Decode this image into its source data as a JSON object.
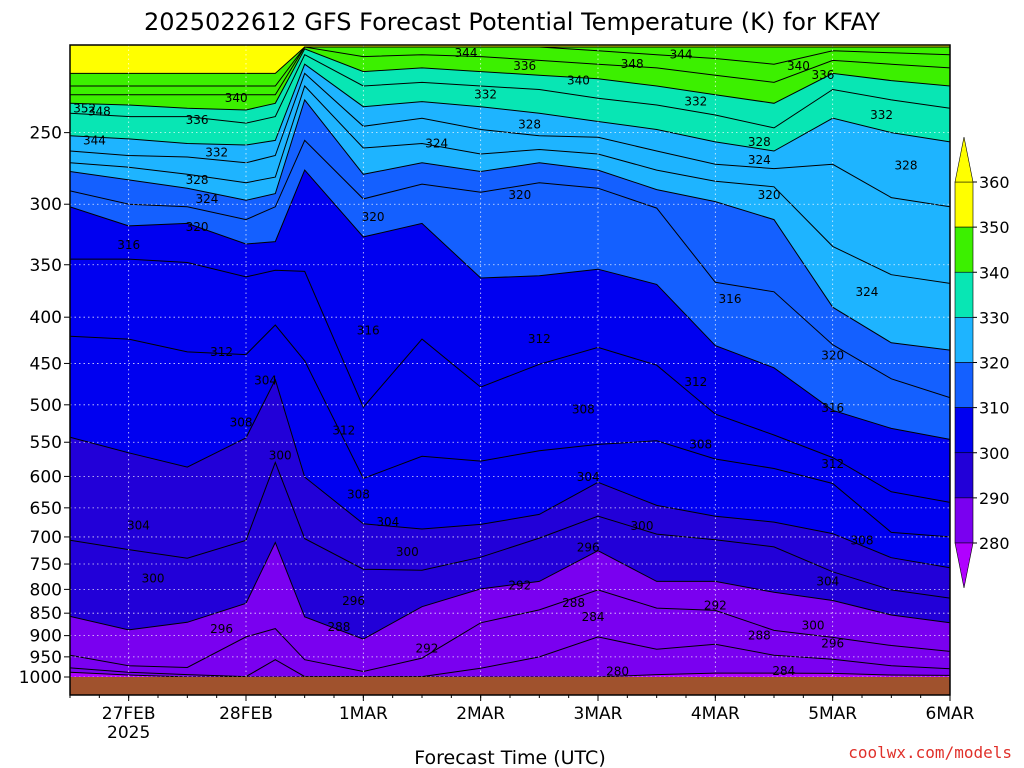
{
  "chart_data": {
    "type": "heatmap",
    "title": "2025022612 GFS Forecast Potential Temperature (K) for KFAY",
    "xlabel": "Forecast Time (UTC)",
    "ylabel": "",
    "credit": "coolwx.com/models",
    "y_axis": {
      "scale": "log-pressure",
      "unit": "hPa",
      "range": [
        1000,
        200
      ],
      "ticks": [
        "250",
        "300",
        "350",
        "400",
        "450",
        "500",
        "550",
        "600",
        "650",
        "700",
        "750",
        "800",
        "850",
        "900",
        "950",
        "1000"
      ]
    },
    "x_axis": {
      "range": [
        "2025-02-26T12:00Z",
        "2025-03-06T00:00Z"
      ],
      "ticks": [
        {
          "label": "27FEB",
          "sublabel": "2025",
          "time": "2025-02-27T00:00Z"
        },
        {
          "label": "28FEB",
          "sublabel": "",
          "time": "2025-02-28T00:00Z"
        },
        {
          "label": "1MAR",
          "sublabel": "",
          "time": "2025-03-01T00:00Z"
        },
        {
          "label": "2MAR",
          "sublabel": "",
          "time": "2025-03-02T00:00Z"
        },
        {
          "label": "3MAR",
          "sublabel": "",
          "time": "2025-03-03T00:00Z"
        },
        {
          "label": "4MAR",
          "sublabel": "",
          "time": "2025-03-04T00:00Z"
        },
        {
          "label": "5MAR",
          "sublabel": "",
          "time": "2025-03-05T00:00Z"
        },
        {
          "label": "6MAR",
          "sublabel": "",
          "time": "2025-03-06T00:00Z"
        }
      ]
    },
    "grid": true,
    "colorbar": {
      "levels": [
        280,
        290,
        300,
        310,
        320,
        330,
        340,
        350,
        360
      ],
      "labels": [
        "280",
        "290",
        "300",
        "310",
        "320",
        "330",
        "340",
        "350",
        "360"
      ],
      "colors": [
        "#b000ff",
        "#7a00f0",
        "#2200d8",
        "#0000f0",
        "#1460ff",
        "#1eb4ff",
        "#08e6b4",
        "#3cf000",
        "#ffff00",
        "#ffc800",
        "#ff9600"
      ]
    },
    "isentrope_levels": [
      280,
      284,
      288,
      292,
      296,
      300,
      304,
      308,
      312,
      316,
      320,
      324,
      328,
      332,
      336,
      340,
      344,
      348,
      352
    ],
    "isentrope_profiles": [
      {
        "time": "2025-02-26T12:00Z",
        "pressure_hPa": [
          988,
          977,
          946,
          857,
          706,
          543,
          420,
          345,
          302,
          290,
          276,
          270,
          262,
          252,
          238,
          232,
          227,
          222,
          215
        ]
      },
      {
        "time": "2025-02-27T00:00Z",
        "pressure_hPa": [
          995,
          988,
          972,
          887,
          723,
          565,
          423,
          345,
          317,
          300,
          282,
          273,
          265,
          254,
          240,
          233,
          227,
          222,
          215
        ]
      },
      {
        "time": "2025-02-27T12:00Z",
        "pressure_hPa": [
          1000,
          994,
          976,
          870,
          739,
          586,
          437,
          348,
          315,
          302,
          288,
          278,
          266,
          257,
          240,
          235,
          227,
          222,
          215
        ]
      },
      {
        "time": "2025-02-28T00:00Z",
        "pressure_hPa": [
          1000,
          999,
          903,
          829,
          706,
          544,
          440,
          361,
          332,
          312,
          297,
          284,
          270,
          258,
          244,
          236,
          227,
          222,
          215
        ]
      },
      {
        "time": "2025-02-28T06:00Z",
        "pressure_hPa": [
          1000,
          957,
          884,
          710,
          579,
          469,
          408,
          355,
          330,
          302,
          292,
          280,
          265,
          255,
          240,
          232,
          227,
          222,
          215
        ]
      },
      {
        "time": "2025-02-28T12:00Z",
        "pressure_hPa": [
          1000,
          999,
          957,
          858,
          703,
          601,
          447,
          356,
          275,
          255,
          230,
          222,
          215,
          210,
          205,
          202,
          201,
          201,
          201
        ]
      },
      {
        "time": "2025-03-01T00:00Z",
        "pressure_hPa": [
          1000,
          999,
          986,
          908,
          760,
          677,
          603,
          503,
          326,
          296,
          278,
          260,
          246,
          234,
          222,
          214,
          206,
          201,
          201
        ]
      },
      {
        "time": "2025-03-01T12:00Z",
        "pressure_hPa": [
          1000,
          999,
          953,
          836,
          762,
          686,
          570,
          423,
          315,
          285,
          270,
          257,
          241,
          231,
          220,
          212,
          205,
          201,
          201
        ]
      },
      {
        "time": "2025-03-02T00:00Z",
        "pressure_hPa": [
          1000,
          978,
          871,
          799,
          737,
          678,
          577,
          478,
          362,
          291,
          276,
          264,
          248,
          234,
          222,
          214,
          206,
          201,
          201
        ]
      },
      {
        "time": "2025-03-02T12:00Z",
        "pressure_hPa": [
          1000,
          950,
          843,
          784,
          702,
          661,
          562,
          451,
          360,
          284,
          270,
          261,
          252,
          238,
          224,
          216,
          208,
          201,
          201
        ]
      },
      {
        "time": "2025-03-03T00:00Z",
        "pressure_hPa": [
          1000,
          903,
          801,
          725,
          664,
          609,
          553,
          432,
          354,
          288,
          275,
          264,
          253,
          243,
          229,
          218,
          210,
          203,
          201
        ]
      },
      {
        "time": "2025-03-03T12:00Z",
        "pressure_hPa": [
          994,
          932,
          839,
          784,
          695,
          646,
          548,
          452,
          368,
          303,
          289,
          275,
          262,
          248,
          233,
          222,
          212,
          205,
          201
        ]
      },
      {
        "time": "2025-03-04T00:00Z",
        "pressure_hPa": [
          990,
          920,
          844,
          784,
          705,
          664,
          574,
          512,
          430,
          366,
          298,
          283,
          271,
          256,
          239,
          227,
          216,
          207,
          201
        ]
      },
      {
        "time": "2025-03-04T12:00Z",
        "pressure_hPa": [
          990,
          946,
          888,
          806,
          718,
          674,
          588,
          540,
          455,
          375,
          312,
          287,
          274,
          262,
          247,
          232,
          220,
          210,
          201
        ]
      },
      {
        "time": "2025-03-05T00:00Z",
        "pressure_hPa": [
          991,
          956,
          904,
          823,
          765,
          694,
          611,
          572,
          507,
          429,
          390,
          334,
          271,
          241,
          224,
          215,
          208,
          203,
          201
        ]
      },
      {
        "time": "2025-03-05T12:00Z",
        "pressure_hPa": [
          995,
          972,
          923,
          854,
          801,
          738,
          692,
          624,
          531,
          468,
          427,
          359,
          295,
          250,
          230,
          219,
          210,
          204,
          201
        ]
      },
      {
        "time": "2025-03-06T00:00Z",
        "pressure_hPa": [
          996,
          979,
          937,
          871,
          818,
          757,
          700,
          641,
          546,
          491,
          435,
          367,
          302,
          256,
          235,
          222,
          212,
          205,
          201
        ]
      }
    ],
    "contour_labels": [
      {
        "text": "352",
        "time": "2025-02-26T15:00Z",
        "pressure_hPa": 235
      },
      {
        "text": "348",
        "time": "2025-02-26T18:00Z",
        "pressure_hPa": 237
      },
      {
        "text": "344",
        "time": "2025-02-26T17:00Z",
        "pressure_hPa": 255
      },
      {
        "text": "340",
        "time": "2025-02-27T22:00Z",
        "pressure_hPa": 229
      },
      {
        "text": "336",
        "time": "2025-02-27T14:00Z",
        "pressure_hPa": 242
      },
      {
        "text": "332",
        "time": "2025-02-27T18:00Z",
        "pressure_hPa": 263
      },
      {
        "text": "328",
        "time": "2025-02-27T14:00Z",
        "pressure_hPa": 282
      },
      {
        "text": "324",
        "time": "2025-02-27T16:00Z",
        "pressure_hPa": 296
      },
      {
        "text": "320",
        "time": "2025-02-27T14:00Z",
        "pressure_hPa": 318
      },
      {
        "text": "316",
        "time": "2025-02-27T00:00Z",
        "pressure_hPa": 333
      },
      {
        "text": "312",
        "time": "2025-02-27T19:00Z",
        "pressure_hPa": 437
      },
      {
        "text": "304",
        "time": "2025-02-28T04:00Z",
        "pressure_hPa": 470
      },
      {
        "text": "308",
        "time": "2025-02-27T23:00Z",
        "pressure_hPa": 523
      },
      {
        "text": "300",
        "time": "2025-02-28T07:00Z",
        "pressure_hPa": 569
      },
      {
        "text": "304",
        "time": "2025-02-27T02:00Z",
        "pressure_hPa": 680
      },
      {
        "text": "300",
        "time": "2025-02-27T05:00Z",
        "pressure_hPa": 778
      },
      {
        "text": "296",
        "time": "2025-02-27T19:00Z",
        "pressure_hPa": 885
      },
      {
        "text": "288",
        "time": "2025-02-28T19:00Z",
        "pressure_hPa": 880
      },
      {
        "text": "344",
        "time": "2025-03-01T21:00Z",
        "pressure_hPa": 204
      },
      {
        "text": "336",
        "time": "2025-03-02T09:00Z",
        "pressure_hPa": 211
      },
      {
        "text": "332",
        "time": "2025-03-02T01:00Z",
        "pressure_hPa": 227
      },
      {
        "text": "324",
        "time": "2025-03-01T15:00Z",
        "pressure_hPa": 257
      },
      {
        "text": "328",
        "time": "2025-03-02T10:00Z",
        "pressure_hPa": 245
      },
      {
        "text": "320",
        "time": "2025-03-01T02:00Z",
        "pressure_hPa": 310
      },
      {
        "text": "320",
        "time": "2025-03-02T08:00Z",
        "pressure_hPa": 293
      },
      {
        "text": "316",
        "time": "2025-03-01T01:00Z",
        "pressure_hPa": 414
      },
      {
        "text": "312",
        "time": "2025-03-02T12:00Z",
        "pressure_hPa": 423
      },
      {
        "text": "312",
        "time": "2025-02-28T20:00Z",
        "pressure_hPa": 534
      },
      {
        "text": "308",
        "time": "2025-02-28T23:00Z",
        "pressure_hPa": 628
      },
      {
        "text": "304",
        "time": "2025-03-01T05:00Z",
        "pressure_hPa": 674
      },
      {
        "text": "300",
        "time": "2025-03-01T09:00Z",
        "pressure_hPa": 727
      },
      {
        "text": "296",
        "time": "2025-02-28T22:00Z",
        "pressure_hPa": 824
      },
      {
        "text": "292",
        "time": "2025-03-01T13:00Z",
        "pressure_hPa": 930
      },
      {
        "text": "292",
        "time": "2025-03-02T08:00Z",
        "pressure_hPa": 792
      },
      {
        "text": "340",
        "time": "2025-03-02T20:00Z",
        "pressure_hPa": 219
      },
      {
        "text": "348",
        "time": "2025-03-03T07:00Z",
        "pressure_hPa": 210
      },
      {
        "text": "344",
        "time": "2025-03-03T17:00Z",
        "pressure_hPa": 205
      },
      {
        "text": "308",
        "time": "2025-03-02T21:00Z",
        "pressure_hPa": 506
      },
      {
        "text": "304",
        "time": "2025-03-02T22:00Z",
        "pressure_hPa": 601
      },
      {
        "text": "296",
        "time": "2025-03-02T22:00Z",
        "pressure_hPa": 719
      },
      {
        "text": "300",
        "time": "2025-03-03T09:00Z",
        "pressure_hPa": 681
      },
      {
        "text": "288",
        "time": "2025-03-02T19:00Z",
        "pressure_hPa": 828
      },
      {
        "text": "284",
        "time": "2025-03-02T23:00Z",
        "pressure_hPa": 858
      },
      {
        "text": "280",
        "time": "2025-03-03T04:00Z",
        "pressure_hPa": 986
      },
      {
        "text": "332",
        "time": "2025-03-03T20:00Z",
        "pressure_hPa": 231
      },
      {
        "text": "328",
        "time": "2025-03-04T09:00Z",
        "pressure_hPa": 256
      },
      {
        "text": "324",
        "time": "2025-03-04T09:00Z",
        "pressure_hPa": 268
      },
      {
        "text": "320",
        "time": "2025-03-04T11:00Z",
        "pressure_hPa": 293
      },
      {
        "text": "316",
        "time": "2025-03-04T03:00Z",
        "pressure_hPa": 382
      },
      {
        "text": "312",
        "time": "2025-03-03T20:00Z",
        "pressure_hPa": 472
      },
      {
        "text": "308",
        "time": "2025-03-03T21:00Z",
        "pressure_hPa": 553
      },
      {
        "text": "292",
        "time": "2025-03-04T00:00Z",
        "pressure_hPa": 834
      },
      {
        "text": "288",
        "time": "2025-03-04T09:00Z",
        "pressure_hPa": 900
      },
      {
        "text": "284",
        "time": "2025-03-04T14:00Z",
        "pressure_hPa": 985
      },
      {
        "text": "340",
        "time": "2025-03-04T17:00Z",
        "pressure_hPa": 211
      },
      {
        "text": "336",
        "time": "2025-03-04T22:00Z",
        "pressure_hPa": 216
      },
      {
        "text": "332",
        "time": "2025-03-05T10:00Z",
        "pressure_hPa": 239
      },
      {
        "text": "328",
        "time": "2025-03-05T15:00Z",
        "pressure_hPa": 272
      },
      {
        "text": "324",
        "time": "2025-03-05T07:00Z",
        "pressure_hPa": 375
      },
      {
        "text": "320",
        "time": "2025-03-05T00:00Z",
        "pressure_hPa": 441
      },
      {
        "text": "316",
        "time": "2025-03-05T00:00Z",
        "pressure_hPa": 504
      },
      {
        "text": "312",
        "time": "2025-03-05T00:00Z",
        "pressure_hPa": 581
      },
      {
        "text": "308",
        "time": "2025-03-05T06:00Z",
        "pressure_hPa": 706
      },
      {
        "text": "304",
        "time": "2025-03-04T23:00Z",
        "pressure_hPa": 784
      },
      {
        "text": "300",
        "time": "2025-03-04T20:00Z",
        "pressure_hPa": 877
      },
      {
        "text": "296",
        "time": "2025-03-05T00:00Z",
        "pressure_hPa": 918
      }
    ]
  }
}
